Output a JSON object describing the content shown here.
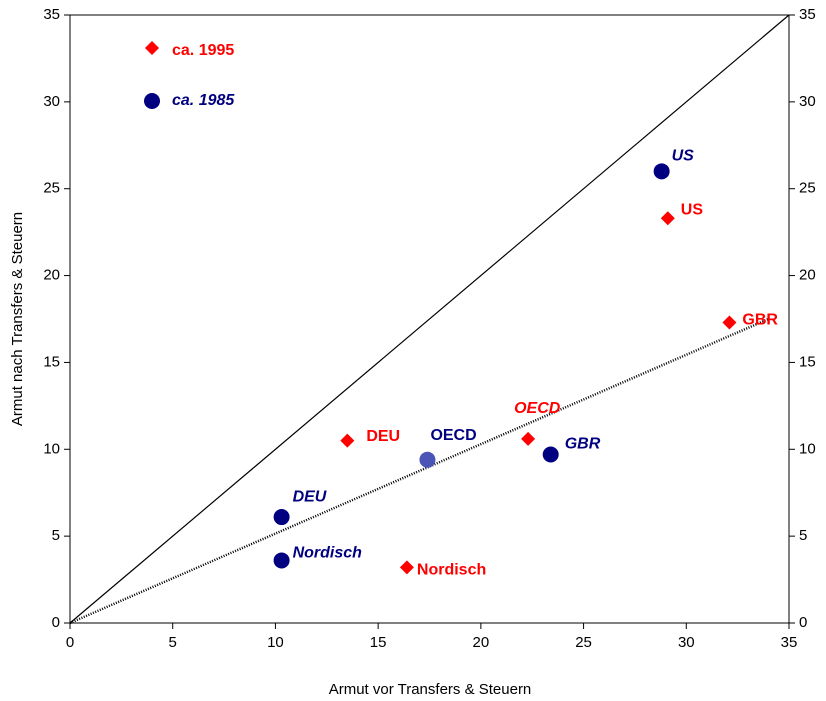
{
  "chart_data": {
    "type": "scatter",
    "x_label": "Armut vor Transfers & Steuern",
    "y_label": "Armut nach Transfers & Steuern",
    "xlim": [
      0,
      35
    ],
    "ylim": [
      0,
      35
    ],
    "y2lim": [
      0,
      35
    ],
    "xticks": [
      0,
      5,
      10,
      15,
      20,
      25,
      30,
      35
    ],
    "yticks": [
      0,
      5,
      10,
      15,
      20,
      25,
      30,
      35
    ],
    "y2ticks": [
      0,
      5,
      10,
      15,
      20,
      25,
      30,
      35
    ],
    "legend": "upper left",
    "series": [
      {
        "name": "ca. 1995",
        "marker": "diamond",
        "color": "#ff0000",
        "label_color": "#ff0000",
        "labels": [
          "US",
          "GBR",
          "OECD",
          "DEU",
          "Nordisch"
        ],
        "label_italic": [
          false,
          false,
          true,
          false,
          false
        ],
        "x": [
          29.1,
          32.1,
          22.3,
          13.5,
          16.4
        ],
        "values": [
          23.3,
          17.3,
          10.6,
          10.5,
          3.2
        ]
      },
      {
        "name": "ca. 1985",
        "marker": "circle",
        "color": "#000080",
        "label_color": "#000080",
        "labels": [
          "US",
          "OECD",
          "GBR",
          "DEU",
          "Nordisch"
        ],
        "label_italic": [
          true,
          false,
          true,
          true,
          true
        ],
        "point_colors": [
          "#000080",
          "#4a55b5",
          "#000080",
          "#000080",
          "#000080"
        ],
        "x": [
          28.8,
          17.4,
          23.4,
          10.3,
          10.3
        ],
        "values": [
          26.0,
          9.4,
          9.7,
          6.1,
          3.6
        ]
      }
    ],
    "lines": [
      {
        "style": "solid",
        "color": "#000000",
        "x": [
          0,
          35
        ],
        "values": [
          0,
          35
        ]
      },
      {
        "style": "dotted",
        "color": "#000000",
        "x": [
          0,
          34
        ],
        "values": [
          0,
          17.5
        ]
      }
    ]
  }
}
